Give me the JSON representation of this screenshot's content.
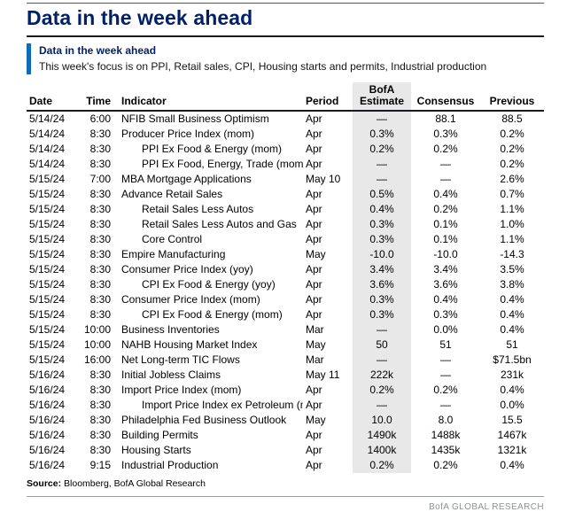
{
  "page": {
    "title": "Data in the week ahead"
  },
  "callout": {
    "title": "Data in the week ahead",
    "subtitle": "This week's focus is on PPI, Retail sales, CPI, Housing starts and permits, Industrial production"
  },
  "table": {
    "headers": {
      "date": "Date",
      "time": "Time",
      "indicator": "Indicator",
      "period": "Period",
      "estimate_line1": "BofA",
      "estimate_line2": "Estimate",
      "consensus": "Consensus",
      "previous": "Previous"
    },
    "rows": [
      {
        "date": "5/14/24",
        "time": "6:00",
        "indicator": "NFIB Small Business Optimism",
        "indent": false,
        "period": "Apr",
        "estimate": "—",
        "consensus": "88.1",
        "previous": "88.5"
      },
      {
        "date": "5/14/24",
        "time": "8:30",
        "indicator": "Producer Price Index (mom)",
        "indent": false,
        "period": "Apr",
        "estimate": "0.3%",
        "consensus": "0.3%",
        "previous": "0.2%"
      },
      {
        "date": "5/14/24",
        "time": "8:30",
        "indicator": "PPI Ex Food & Energy (mom)",
        "indent": true,
        "period": "Apr",
        "estimate": "0.2%",
        "consensus": "0.2%",
        "previous": "0.2%"
      },
      {
        "date": "5/14/24",
        "time": "8:30",
        "indicator": "PPI Ex Food, Energy, Trade (mom)",
        "indent": true,
        "period": "Apr",
        "estimate": "—",
        "consensus": "—",
        "previous": "0.2%"
      },
      {
        "date": "5/15/24",
        "time": "7:00",
        "indicator": "MBA Mortgage Applications",
        "indent": false,
        "period": "May 10",
        "estimate": "—",
        "consensus": "—",
        "previous": "2.6%"
      },
      {
        "date": "5/15/24",
        "time": "8:30",
        "indicator": "Advance Retail Sales",
        "indent": false,
        "period": "Apr",
        "estimate": "0.5%",
        "consensus": "0.4%",
        "previous": "0.7%"
      },
      {
        "date": "5/15/24",
        "time": "8:30",
        "indicator": "Retail Sales Less Autos",
        "indent": true,
        "period": "Apr",
        "estimate": "0.4%",
        "consensus": "0.2%",
        "previous": "1.1%"
      },
      {
        "date": "5/15/24",
        "time": "8:30",
        "indicator": "Retail Sales Less Autos and Gas",
        "indent": true,
        "period": "Apr",
        "estimate": "0.3%",
        "consensus": "0.1%",
        "previous": "1.0%"
      },
      {
        "date": "5/15/24",
        "time": "8:30",
        "indicator": "Core Control",
        "indent": true,
        "period": "Apr",
        "estimate": "0.3%",
        "consensus": "0.1%",
        "previous": "1.1%"
      },
      {
        "date": "5/15/24",
        "time": "8:30",
        "indicator": "Empire Manufacturing",
        "indent": false,
        "period": "May",
        "estimate": "-10.0",
        "consensus": "-10.0",
        "previous": "-14.3"
      },
      {
        "date": "5/15/24",
        "time": "8:30",
        "indicator": "Consumer Price Index (yoy)",
        "indent": false,
        "period": "Apr",
        "estimate": "3.4%",
        "consensus": "3.4%",
        "previous": "3.5%"
      },
      {
        "date": "5/15/24",
        "time": "8:30",
        "indicator": "CPI Ex Food & Energy (yoy)",
        "indent": true,
        "period": "Apr",
        "estimate": "3.6%",
        "consensus": "3.6%",
        "previous": "3.8%"
      },
      {
        "date": "5/15/24",
        "time": "8:30",
        "indicator": "Consumer Price Index (mom)",
        "indent": false,
        "period": "Apr",
        "estimate": "0.3%",
        "consensus": "0.4%",
        "previous": "0.4%"
      },
      {
        "date": "5/15/24",
        "time": "8:30",
        "indicator": "CPI Ex Food & Energy (mom)",
        "indent": true,
        "period": "Apr",
        "estimate": "0.3%",
        "consensus": "0.3%",
        "previous": "0.4%"
      },
      {
        "date": "5/15/24",
        "time": "10:00",
        "indicator": "Business Inventories",
        "indent": false,
        "period": "Mar",
        "estimate": "—",
        "consensus": "0.0%",
        "previous": "0.4%"
      },
      {
        "date": "5/15/24",
        "time": "10:00",
        "indicator": "NAHB Housing Market Index",
        "indent": false,
        "period": "May",
        "estimate": "50",
        "consensus": "51",
        "previous": "51"
      },
      {
        "date": "5/15/24",
        "time": "16:00",
        "indicator": "Net Long-term TIC Flows",
        "indent": false,
        "period": "Mar",
        "estimate": "—",
        "consensus": "—",
        "previous": "$71.5bn"
      },
      {
        "date": "5/16/24",
        "time": "8:30",
        "indicator": "Initial Jobless Claims",
        "indent": false,
        "period": "May 11",
        "estimate": "222k",
        "consensus": "—",
        "previous": "231k"
      },
      {
        "date": "5/16/24",
        "time": "8:30",
        "indicator": "Import Price Index (mom)",
        "indent": false,
        "period": "Apr",
        "estimate": "0.2%",
        "consensus": "0.2%",
        "previous": "0.4%"
      },
      {
        "date": "5/16/24",
        "time": "8:30",
        "indicator": "Import Price Index ex Petroleum (mom)",
        "indent": true,
        "period": "Apr",
        "estimate": "—",
        "consensus": "—",
        "previous": "0.0%"
      },
      {
        "date": "5/16/24",
        "time": "8:30",
        "indicator": "Philadelphia Fed Business Outlook",
        "indent": false,
        "period": "May",
        "estimate": "10.0",
        "consensus": "8.0",
        "previous": "15.5"
      },
      {
        "date": "5/16/24",
        "time": "8:30",
        "indicator": "Building Permits",
        "indent": false,
        "period": "Apr",
        "estimate": "1490k",
        "consensus": "1488k",
        "previous": "1467k"
      },
      {
        "date": "5/16/24",
        "time": "8:30",
        "indicator": "Housing Starts",
        "indent": false,
        "period": "Apr",
        "estimate": "1400k",
        "consensus": "1435k",
        "previous": "1321k"
      },
      {
        "date": "5/16/24",
        "time": "9:15",
        "indicator": "Industrial Production",
        "indent": false,
        "period": "Apr",
        "estimate": "0.2%",
        "consensus": "0.2%",
        "previous": "0.4%"
      }
    ]
  },
  "footer": {
    "source_label": "Source:",
    "source_text": "Bloomberg, BofA Global Research",
    "brand": "BofA GLOBAL RESEARCH"
  },
  "colors": {
    "title_navy": "#012169",
    "accent_blue": "#0d6cb8",
    "estimate_shade": "#e8e8e8"
  }
}
